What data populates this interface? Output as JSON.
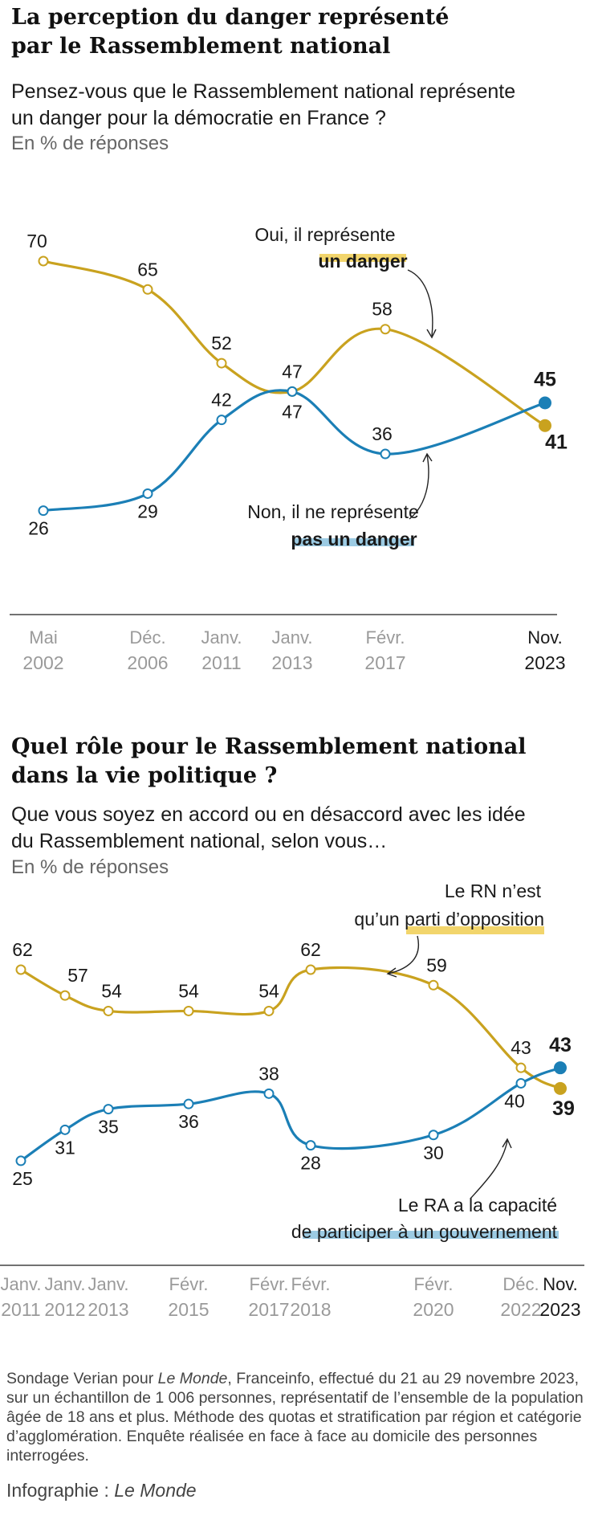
{
  "colors": {
    "gold": "#c9a21f",
    "blue": "#1b7fb6",
    "gold_highlight": "#f2d56c",
    "blue_highlight": "#9ccbe3",
    "tick": "#9a9a9a",
    "axis": "#444444"
  },
  "section1": {
    "title": "La perception du danger représenté\npar le Rassemblement national",
    "subtitle": "Pensez-vous que le Rassemblement national représente\nun danger pour la démocratie en France ?",
    "unit": "En % de réponses"
  },
  "section2": {
    "title": "Quel rôle pour le Rassemblement national\ndans la vie politique ?",
    "subtitle": "Que vous soyez en accord ou en désaccord avec les idée\ndu Rassemblement national, selon vous…",
    "unit": "En % de réponses"
  },
  "chart_data": [
    {
      "type": "line",
      "x": [
        "Mai 2002",
        "Déc. 2006",
        "Janv. 2011",
        "Janv. 2013",
        "Févr. 2017",
        "Nov. 2023"
      ],
      "x_ticks": [
        {
          "month": "Mai",
          "year": "2002"
        },
        {
          "month": "Déc.",
          "year": "2006"
        },
        {
          "month": "Janv.",
          "year": "2011"
        },
        {
          "month": "Janv.",
          "year": "2013"
        },
        {
          "month": "Févr.",
          "year": "2017"
        },
        {
          "month": "Nov.",
          "year": "2023"
        }
      ],
      "series": [
        {
          "name_line1": "Oui, il représente",
          "name_line2": "un danger",
          "color": "#c9a21f",
          "values": [
            70,
            65,
            52,
            47,
            58,
            41
          ]
        },
        {
          "name_line1": "Non, il ne représente",
          "name_line2": "pas un danger",
          "color": "#1b7fb6",
          "values": [
            26,
            29,
            42,
            47,
            36,
            45
          ]
        }
      ],
      "grid": false,
      "legend": "inline"
    },
    {
      "type": "line",
      "x": [
        "Janv. 2011",
        "Janv. 2012",
        "Janv. 2013",
        "Févr. 2015",
        "Févr. 2017",
        "Févr. 2018",
        "Févr. 2020",
        "Déc. 2022",
        "Nov. 2023"
      ],
      "x_ticks": [
        {
          "month": "Janv.",
          "year": "2011"
        },
        {
          "month": "Janv.",
          "year": "2012"
        },
        {
          "month": "Janv.",
          "year": "2013"
        },
        {
          "month": "Févr.",
          "year": "2015"
        },
        {
          "month": "Févr.",
          "year": "2017"
        },
        {
          "month": "Févr.",
          "year": "2018"
        },
        {
          "month": "Févr.",
          "year": "2020"
        },
        {
          "month": "Déc.",
          "year": "2022"
        },
        {
          "month": "Nov.",
          "year": "2023"
        }
      ],
      "series": [
        {
          "name_line1": "Le RN n’est",
          "name_line2a": "qu’un ",
          "name_line2b": "parti d’opposition",
          "color": "#c9a21f",
          "values": [
            62,
            57,
            54,
            54,
            54,
            62,
            59,
            43,
            39
          ]
        },
        {
          "name_line1": "Le RA a la capacité",
          "name_line2": "de participer à un gouvernement",
          "color": "#1b7fb6",
          "values": [
            25,
            31,
            35,
            36,
            38,
            28,
            30,
            40,
            43
          ]
        }
      ],
      "grid": false,
      "legend": "inline"
    }
  ],
  "footer": {
    "part1": "Sondage Verian pour ",
    "source": "Le Monde",
    "part2": ", Franceinfo, effectué du 21 au 29 novembre 2023, sur un échantillon de 1 006 personnes, représentatif de l’ensemble de la population âgée de 18 ans et plus. Méthode des quotas et stratification par région et catégorie d’agglomération. Enquête réalisée en face à face au domicile des personnes interrogées."
  },
  "credit": {
    "label": "Infographie : ",
    "name": "Le Monde"
  }
}
